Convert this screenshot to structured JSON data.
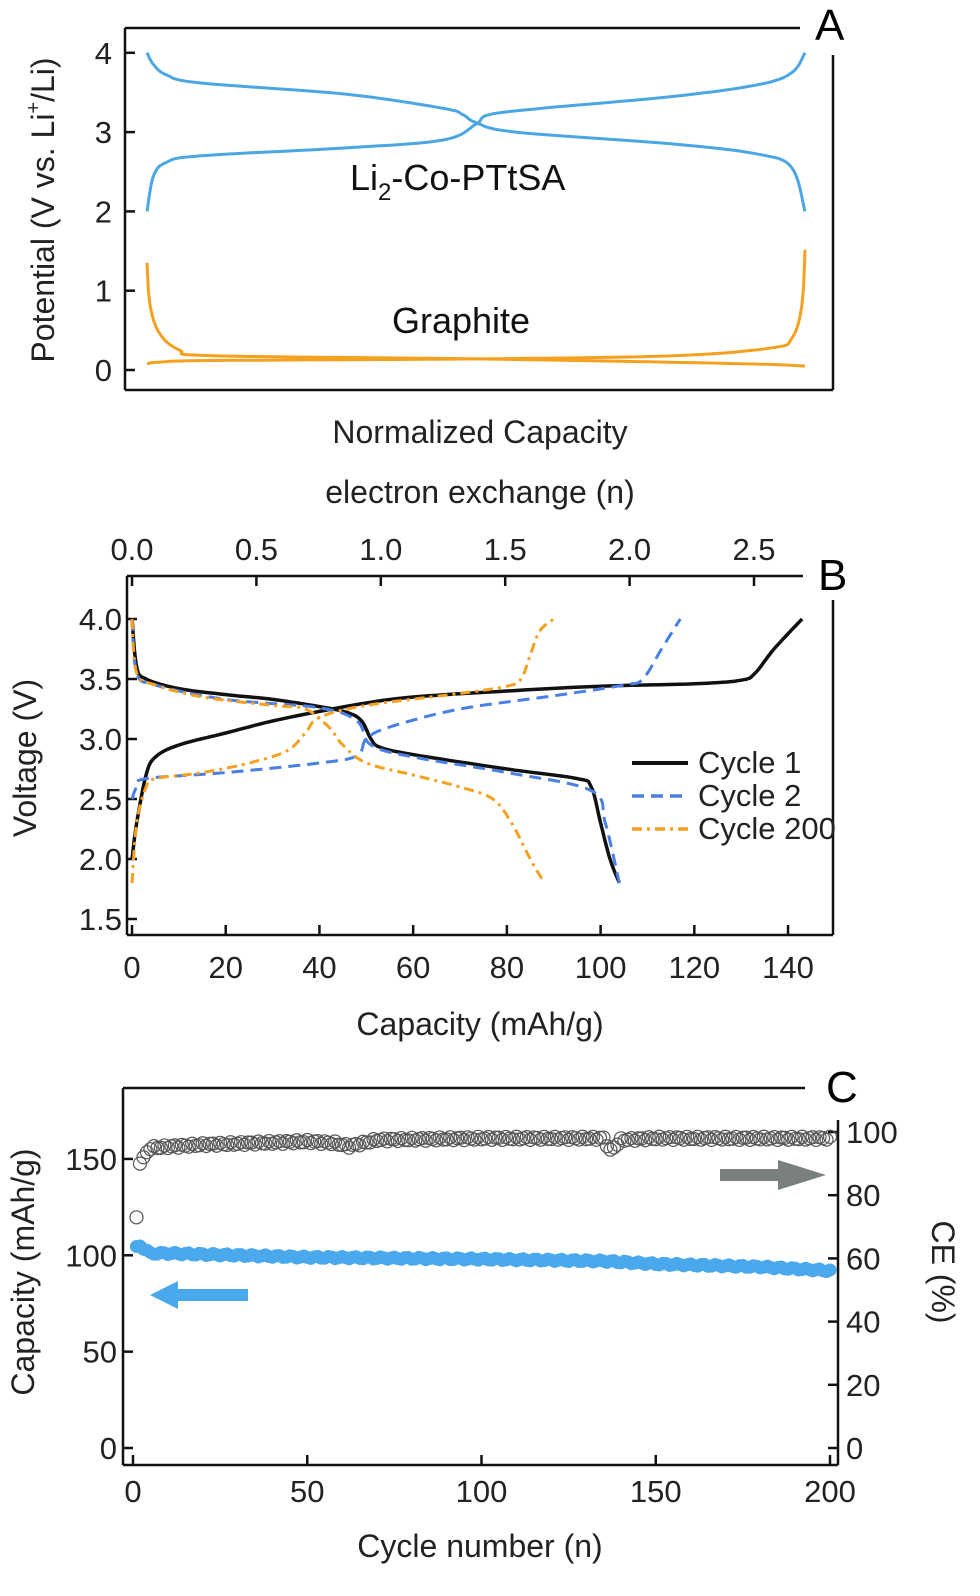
{
  "chart_data": [
    {
      "panel": "A",
      "type": "line",
      "xlabel": "Normalized Capacity",
      "ylabel_parts": [
        "Potential (V vs. Li",
        "+",
        "/Li)"
      ],
      "ylim": [
        0,
        4
      ],
      "xlim": [
        0,
        1
      ],
      "y_ticks": [
        "0",
        "1",
        "2",
        "3",
        "4"
      ],
      "annotations": {
        "cathode": [
          "Li",
          "2",
          "-Co-PTtSA"
        ],
        "anode": "Graphite"
      },
      "colors": {
        "cathode": "#4ba6e3",
        "anode": "#f5a01e"
      },
      "series": [
        {
          "name": "Li2-Co-PTtSA charge",
          "color": "#4ba6e3",
          "points": [
            [
              0,
              2.0
            ],
            [
              0.01,
              2.45
            ],
            [
              0.03,
              2.62
            ],
            [
              0.08,
              2.7
            ],
            [
              0.3,
              2.8
            ],
            [
              0.45,
              2.9
            ],
            [
              0.5,
              3.1
            ],
            [
              0.52,
              3.22
            ],
            [
              0.6,
              3.3
            ],
            [
              0.8,
              3.45
            ],
            [
              0.93,
              3.6
            ],
            [
              0.98,
              3.75
            ],
            [
              1.0,
              4.0
            ]
          ]
        },
        {
          "name": "Li2-Co-PTtSA discharge",
          "color": "#4ba6e3",
          "points": [
            [
              0,
              4.0
            ],
            [
              0.01,
              3.85
            ],
            [
              0.03,
              3.72
            ],
            [
              0.08,
              3.62
            ],
            [
              0.3,
              3.48
            ],
            [
              0.45,
              3.3
            ],
            [
              0.48,
              3.22
            ],
            [
              0.5,
              3.12
            ],
            [
              0.56,
              3.0
            ],
            [
              0.8,
              2.85
            ],
            [
              0.93,
              2.72
            ],
            [
              0.98,
              2.55
            ],
            [
              1.0,
              2.0
            ]
          ]
        },
        {
          "name": "Graphite lithiation",
          "color": "#f5a01e",
          "points": [
            [
              0,
              1.35
            ],
            [
              0.005,
              0.8
            ],
            [
              0.02,
              0.45
            ],
            [
              0.05,
              0.25
            ],
            [
              0.1,
              0.18
            ],
            [
              0.5,
              0.14
            ],
            [
              0.9,
              0.08
            ],
            [
              1.0,
              0.05
            ]
          ]
        },
        {
          "name": "Graphite delithiation",
          "color": "#f5a01e",
          "points": [
            [
              0,
              0.08
            ],
            [
              0.02,
              0.1
            ],
            [
              0.1,
              0.12
            ],
            [
              0.5,
              0.14
            ],
            [
              0.8,
              0.18
            ],
            [
              0.95,
              0.28
            ],
            [
              0.98,
              0.4
            ],
            [
              0.995,
              0.8
            ],
            [
              1.0,
              1.5
            ]
          ]
        }
      ]
    },
    {
      "panel": "B",
      "type": "line",
      "xlabel": "Capacity (mAh/g)",
      "x2label": "electron exchange (n)",
      "ylabel": "Voltage (V)",
      "xlim": [
        0,
        148
      ],
      "ylim": [
        1.5,
        4.3
      ],
      "x_ticks": [
        "0",
        "20",
        "40",
        "60",
        "80",
        "100",
        "120",
        "140"
      ],
      "x2_ticks": [
        "0.0",
        "0.5",
        "1.0",
        "1.5",
        "2.0",
        "2.5"
      ],
      "y_ticks": [
        "1.5",
        "2.0",
        "2.5",
        "3.0",
        "3.5",
        "4.0"
      ],
      "legend": {
        "position": "right",
        "entries": [
          "Cycle 1",
          "Cycle 2",
          "Cycle 200"
        ]
      },
      "series": [
        {
          "name": "Cycle 1",
          "style": "solid",
          "color": "#111111",
          "curves": [
            [
              [
                0,
                2.0
              ],
              [
                1,
                2.3
              ],
              [
                3,
                2.7
              ],
              [
                5,
                2.85
              ],
              [
                10,
                2.95
              ],
              [
                20,
                3.05
              ],
              [
                30,
                3.15
              ],
              [
                40,
                3.23
              ],
              [
                50,
                3.3
              ],
              [
                60,
                3.35
              ],
              [
                80,
                3.4
              ],
              [
                100,
                3.44
              ],
              [
                120,
                3.46
              ],
              [
                130,
                3.49
              ],
              [
                133,
                3.55
              ],
              [
                137,
                3.75
              ],
              [
                143,
                4.0
              ]
            ],
            [
              [
                0,
                4.0
              ],
              [
                1,
                3.6
              ],
              [
                3,
                3.5
              ],
              [
                10,
                3.42
              ],
              [
                20,
                3.37
              ],
              [
                30,
                3.33
              ],
              [
                40,
                3.27
              ],
              [
                46,
                3.22
              ],
              [
                49,
                3.15
              ],
              [
                51,
                3.0
              ],
              [
                53,
                2.93
              ],
              [
                60,
                2.87
              ],
              [
                80,
                2.75
              ],
              [
                95,
                2.67
              ],
              [
                98,
                2.6
              ],
              [
                100,
                2.3
              ],
              [
                102,
                2.0
              ],
              [
                104,
                1.8
              ]
            ]
          ]
        },
        {
          "name": "Cycle 2",
          "style": "dashed",
          "color": "#4a7fe3",
          "curves": [
            [
              [
                0,
                2.5
              ],
              [
                1,
                2.6
              ],
              [
                3,
                2.67
              ],
              [
                20,
                2.72
              ],
              [
                40,
                2.8
              ],
              [
                48,
                2.86
              ],
              [
                50,
                3.0
              ],
              [
                55,
                3.1
              ],
              [
                70,
                3.25
              ],
              [
                90,
                3.36
              ],
              [
                105,
                3.45
              ],
              [
                109,
                3.5
              ],
              [
                113,
                3.75
              ],
              [
                117,
                4.0
              ]
            ],
            [
              [
                0,
                4.0
              ],
              [
                1,
                3.55
              ],
              [
                5,
                3.45
              ],
              [
                20,
                3.33
              ],
              [
                40,
                3.26
              ],
              [
                48,
                3.15
              ],
              [
                51,
                2.95
              ],
              [
                60,
                2.85
              ],
              [
                80,
                2.72
              ],
              [
                98,
                2.57
              ],
              [
                101,
                2.3
              ],
              [
                104,
                1.8
              ]
            ]
          ]
        },
        {
          "name": "Cycle 200",
          "style": "dashdot",
          "color": "#f5a01e",
          "curves": [
            [
              [
                0,
                1.8
              ],
              [
                1,
                2.3
              ],
              [
                3,
                2.6
              ],
              [
                5,
                2.67
              ],
              [
                15,
                2.72
              ],
              [
                25,
                2.8
              ],
              [
                33,
                2.9
              ],
              [
                37,
                3.05
              ],
              [
                40,
                3.18
              ],
              [
                50,
                3.28
              ],
              [
                70,
                3.38
              ],
              [
                80,
                3.44
              ],
              [
                83,
                3.5
              ],
              [
                85,
                3.7
              ],
              [
                87,
                3.9
              ],
              [
                90,
                4.0
              ]
            ],
            [
              [
                0,
                4.0
              ],
              [
                1,
                3.55
              ],
              [
                5,
                3.45
              ],
              [
                15,
                3.35
              ],
              [
                30,
                3.28
              ],
              [
                37,
                3.25
              ],
              [
                42,
                3.1
              ],
              [
                45,
                2.95
              ],
              [
                50,
                2.8
              ],
              [
                60,
                2.7
              ],
              [
                70,
                2.6
              ],
              [
                77,
                2.5
              ],
              [
                81,
                2.3
              ],
              [
                85,
                2.0
              ],
              [
                88,
                1.8
              ]
            ]
          ]
        }
      ]
    },
    {
      "panel": "C",
      "type": "scatter",
      "xlabel": "Cycle number (n)",
      "ylabel": "Capacity (mAh/g)",
      "y2label": "CE (%)",
      "xlim": [
        0,
        200
      ],
      "ylim": [
        0,
        175
      ],
      "y2lim": [
        0,
        100
      ],
      "x_ticks": [
        "0",
        "50",
        "100",
        "150",
        "200"
      ],
      "y_ticks": [
        "0",
        "50",
        "100",
        "150"
      ],
      "y2_ticks": [
        "0",
        "20",
        "40",
        "60",
        "80",
        "100"
      ],
      "series": [
        {
          "name": "Capacity",
          "axis": "left",
          "color": "#4aa8ec",
          "marker": "filled-circle",
          "anchors": [
            [
              1,
              104
            ],
            [
              2,
              105
            ],
            [
              5,
              101
            ],
            [
              10,
              101
            ],
            [
              50,
              99
            ],
            [
              100,
              98
            ],
            [
              135,
              97
            ],
            [
              150,
              95.5
            ],
            [
              180,
              94
            ],
            [
              200,
              92
            ]
          ]
        },
        {
          "name": "CE",
          "axis": "right",
          "color": "#555555",
          "marker": "open-circle",
          "anchors": [
            [
              1,
              73
            ],
            [
              2,
              90
            ],
            [
              3,
              92
            ],
            [
              5,
              95
            ],
            [
              20,
              96
            ],
            [
              50,
              97
            ],
            [
              58,
              96.5
            ],
            [
              62,
              95.5
            ],
            [
              70,
              97.5
            ],
            [
              100,
              98
            ],
            [
              135,
              98
            ],
            [
              137,
              94
            ],
            [
              140,
              97.5
            ],
            [
              150,
              98
            ],
            [
              200,
              98
            ]
          ]
        }
      ],
      "arrows": [
        {
          "direction": "right",
          "axis": "CE",
          "color": "#7a7f7f"
        },
        {
          "direction": "left",
          "axis": "Capacity",
          "color": "#4aa8ec"
        }
      ]
    }
  ]
}
